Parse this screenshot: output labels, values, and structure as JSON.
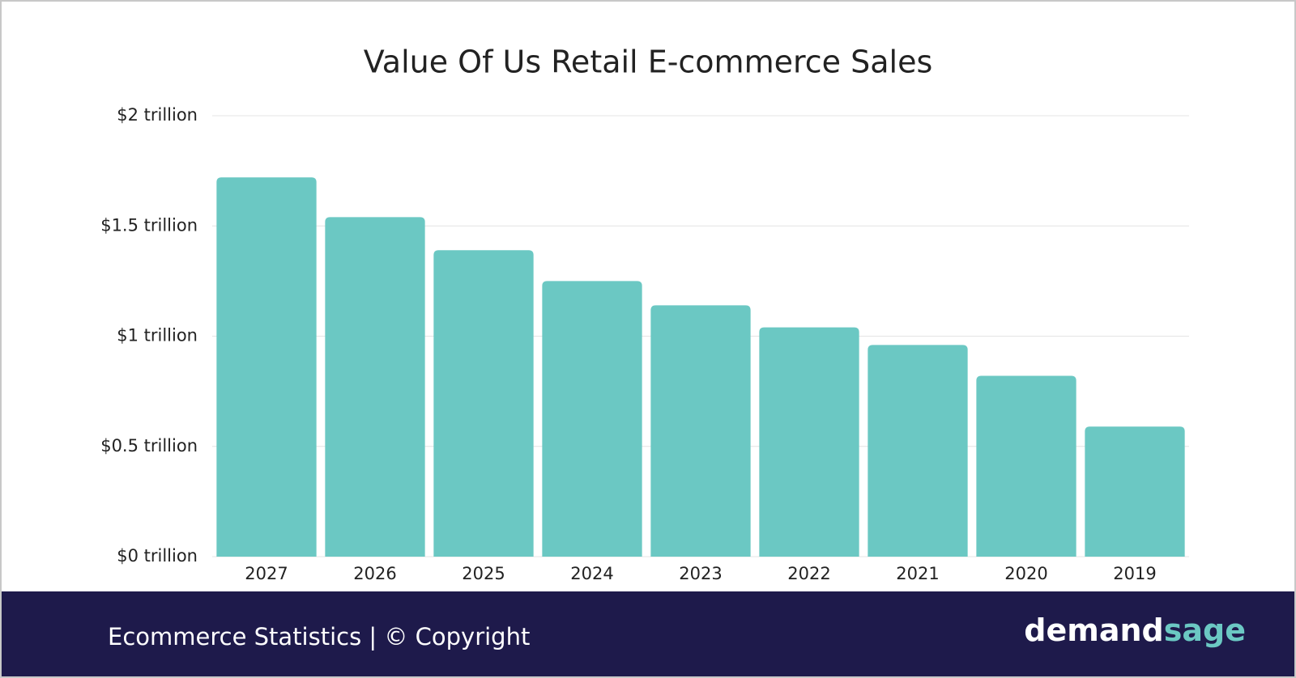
{
  "chart_data": {
    "type": "bar",
    "title": "Value Of Us Retail E-commerce Sales",
    "categories": [
      "2027",
      "2026",
      "2025",
      "2024",
      "2023",
      "2022",
      "2021",
      "2020",
      "2019"
    ],
    "values": [
      1.72,
      1.54,
      1.39,
      1.25,
      1.14,
      1.04,
      0.96,
      0.82,
      0.59
    ],
    "color": "#6bc8c3",
    "ylim": [
      0,
      2
    ],
    "yticks": [
      {
        "value": 0,
        "label": "$0 trillion"
      },
      {
        "value": 0.5,
        "label": "$0.5 trillion"
      },
      {
        "value": 1,
        "label": "$1 trillion"
      },
      {
        "value": 1.5,
        "label": "$1.5 trillion"
      },
      {
        "value": 2,
        "label": "$2 trillion"
      }
    ],
    "grid": true
  },
  "footer": {
    "text": "Ecommerce Statistics | © Copyright",
    "logo_part1": "demand",
    "logo_part2": "sage"
  }
}
